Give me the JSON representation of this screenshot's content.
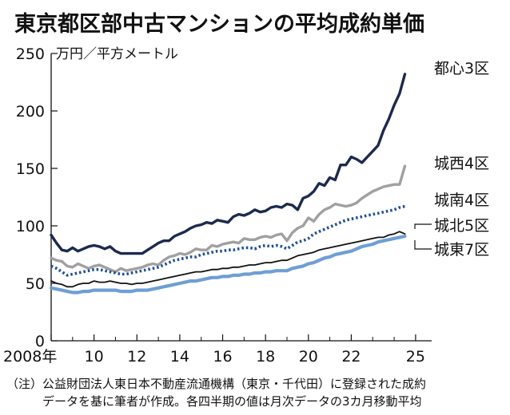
{
  "title": "東京都区部中古マンションの平均成約単価",
  "note": [
    "（注）公益財団法人東日本不動産流通機構（東京・千代田）に登録された成約",
    "　　　データを基に筆者が作成。各四半期の値は月次データの3カ月移動平均"
  ],
  "colors": {
    "toshin": "#1c2a4e",
    "josei": "#a0a0a0",
    "jonan": "#1f4f94",
    "johoku": "#111111",
    "joto": "#6e9fd4"
  },
  "chart_data": {
    "type": "line",
    "ylabel": "万円／平方メートル",
    "ylim": [
      0,
      250
    ],
    "yticks": [
      0,
      50,
      100,
      150,
      200,
      250
    ],
    "xlim": [
      2008,
      2025.75
    ],
    "xticks": [
      {
        "value": 2008,
        "label": "2008年"
      },
      {
        "value": 2010,
        "label": "10"
      },
      {
        "value": 2012,
        "label": "12"
      },
      {
        "value": 2014,
        "label": "14"
      },
      {
        "value": 2016,
        "label": "16"
      },
      {
        "value": 2018,
        "label": "18"
      },
      {
        "value": 2020,
        "label": "20"
      },
      {
        "value": 2022,
        "label": "22"
      },
      {
        "value": 2025,
        "label": "25"
      }
    ],
    "grid": false,
    "legend": "direct-labels-right",
    "x_start": 2008.0,
    "x_step": 0.25,
    "series": [
      {
        "name": "都心3区",
        "key": "toshin",
        "values": [
          92,
          85,
          79,
          78,
          81,
          78,
          80,
          82,
          83,
          82,
          80,
          82,
          78,
          76,
          76,
          76,
          76,
          76,
          79,
          82,
          85,
          87,
          87,
          91,
          93,
          95,
          98,
          100,
          101,
          103,
          102,
          105,
          104,
          103,
          108,
          110,
          109,
          111,
          114,
          112,
          113,
          116,
          117,
          116,
          119,
          118,
          114,
          124,
          126,
          130,
          137,
          135,
          142,
          140,
          153,
          153,
          160,
          158,
          155,
          160,
          165,
          170,
          183,
          193,
          205,
          215,
          232
        ]
      },
      {
        "name": "城西4区",
        "key": "josei",
        "values": [
          72,
          70,
          69,
          65,
          64,
          67,
          65,
          63,
          65,
          66,
          64,
          62,
          60,
          63,
          61,
          62,
          63,
          64,
          66,
          67,
          66,
          70,
          73,
          74,
          76,
          75,
          77,
          80,
          79,
          79,
          83,
          82,
          84,
          85,
          86,
          85,
          89,
          88,
          88,
          90,
          91,
          90,
          92,
          93,
          87,
          94,
          98,
          100,
          107,
          104,
          110,
          114,
          116,
          119,
          118,
          117,
          118,
          120,
          124,
          127,
          130,
          132,
          134,
          135,
          136,
          136,
          152
        ]
      },
      {
        "name": "城南4区",
        "key": "jonan",
        "values": [
          65,
          63,
          60,
          57,
          58,
          59,
          60,
          61,
          62,
          62,
          61,
          60,
          59,
          58,
          58,
          59,
          60,
          61,
          62,
          63,
          64,
          66,
          68,
          70,
          71,
          72,
          73,
          73,
          75,
          76,
          77,
          78,
          78,
          79,
          79,
          80,
          81,
          81,
          80,
          82,
          83,
          82,
          83,
          82,
          80,
          83,
          86,
          87,
          89,
          93,
          95,
          97,
          99,
          101,
          103,
          105,
          106,
          107,
          108,
          109,
          110,
          111,
          112,
          113,
          114,
          116,
          117
        ]
      },
      {
        "name": "城北5区",
        "key": "johoku",
        "values": [
          52,
          50,
          49,
          47,
          47,
          49,
          50,
          50,
          52,
          51,
          51,
          52,
          51,
          50,
          50,
          49,
          50,
          50,
          51,
          52,
          53,
          54,
          55,
          56,
          57,
          58,
          59,
          60,
          60,
          61,
          62,
          62,
          63,
          63,
          64,
          64,
          65,
          66,
          66,
          67,
          68,
          68,
          69,
          70,
          70,
          72,
          74,
          75,
          76,
          77,
          79,
          80,
          81,
          82,
          83,
          84,
          85,
          86,
          87,
          88,
          89,
          90,
          90,
          92,
          93,
          95,
          93
        ]
      },
      {
        "name": "城東7区",
        "key": "joto",
        "values": [
          46,
          45,
          44,
          43,
          42,
          42,
          43,
          43,
          44,
          44,
          44,
          44,
          44,
          43,
          43,
          43,
          44,
          44,
          44,
          45,
          46,
          47,
          48,
          49,
          50,
          51,
          52,
          52,
          53,
          54,
          55,
          55,
          56,
          56,
          57,
          57,
          58,
          58,
          59,
          59,
          60,
          60,
          61,
          61,
          61,
          63,
          64,
          65,
          67,
          68,
          70,
          72,
          73,
          75,
          76,
          77,
          78,
          80,
          82,
          83,
          84,
          86,
          87,
          88,
          89,
          90,
          91
        ]
      }
    ]
  }
}
